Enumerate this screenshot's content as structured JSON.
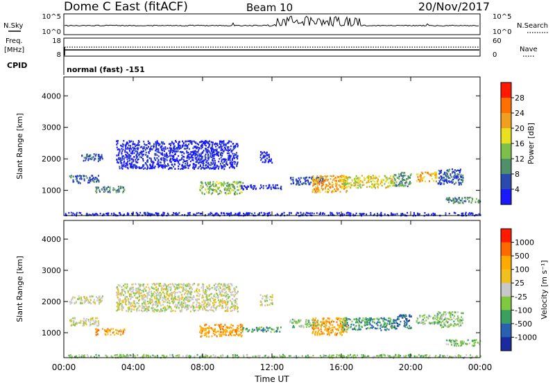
{
  "header": {
    "radar": "Dome C East (fitACF)",
    "beam": "Beam 10",
    "date": "20/Nov/2017"
  },
  "strips": {
    "nsky_label": "N.Sky",
    "nsky_ticks": [
      "10^5",
      "10^0"
    ],
    "nsearch_label": "N.Search",
    "nsearch_ticks": [
      "10^5",
      "10^0"
    ],
    "freq_label": "Freq.",
    "freq_unit": "[MHz]",
    "freq_ticks": [
      "18",
      "8"
    ],
    "nave_label": "Nave",
    "nave_ticks": [
      "60",
      "0"
    ],
    "cpid_label": "CPID",
    "cpid_value": "normal (fast) -151"
  },
  "colors": {
    "power": [
      "#1a1aff",
      "#2a4ab0",
      "#4f8f6a",
      "#7cbf4a",
      "#e8e020",
      "#f0a020",
      "#ff7000",
      "#ff1a00"
    ],
    "velocity": [
      "#ff1a00",
      "#ff6a00",
      "#ffaa00",
      "#f0c020",
      "#c8c8c8",
      "#80c840",
      "#3aa060",
      "#2a60b0",
      "#1a2aa0"
    ]
  },
  "chart_data": [
    {
      "type": "heatmap",
      "name": "power-panel",
      "xlabel": "",
      "ylabel": "Slant Range [km]",
      "x_range_hours": [
        0,
        24
      ],
      "ylim": [
        200,
        4600
      ],
      "y_ticks": [
        1000,
        2000,
        3000,
        4000
      ],
      "x_ticks": [
        0,
        4,
        8,
        12,
        16,
        20,
        24
      ],
      "colorbar": {
        "label": "Power [dB]",
        "ticks": [
          "4",
          "8",
          "12",
          "16",
          "20",
          "24",
          "28"
        ],
        "range": [
          0,
          32
        ]
      },
      "regions": [
        {
          "t": [
            1.0,
            2.2
          ],
          "r": [
            1950,
            2200
          ],
          "v": 6
        },
        {
          "t": [
            0.3,
            2.0
          ],
          "r": [
            1250,
            1500
          ],
          "v": 7
        },
        {
          "t": [
            1.8,
            3.5
          ],
          "r": [
            950,
            1150
          ],
          "v": 12
        },
        {
          "t": [
            3.0,
            10.0
          ],
          "r": [
            1700,
            2600
          ],
          "v": 4
        },
        {
          "t": [
            7.8,
            10.3
          ],
          "r": [
            900,
            1300
          ],
          "v": 15
        },
        {
          "t": [
            10.2,
            12.5
          ],
          "r": [
            1050,
            1200
          ],
          "v": 5
        },
        {
          "t": [
            11.3,
            12.0
          ],
          "r": [
            1900,
            2250
          ],
          "v": 4
        },
        {
          "t": [
            13.0,
            15.0
          ],
          "r": [
            1200,
            1450
          ],
          "v": 8
        },
        {
          "t": [
            14.3,
            16.3
          ],
          "r": [
            950,
            1500
          ],
          "v": 22
        },
        {
          "t": [
            16.0,
            19.0
          ],
          "r": [
            1100,
            1500
          ],
          "v": 18
        },
        {
          "t": [
            19.0,
            20.0
          ],
          "r": [
            1150,
            1600
          ],
          "v": 10
        },
        {
          "t": [
            20.3,
            21.5
          ],
          "r": [
            1300,
            1600
          ],
          "v": 25
        },
        {
          "t": [
            21.5,
            23.0
          ],
          "r": [
            1200,
            1700
          ],
          "v": 9
        },
        {
          "t": [
            22.0,
            24.0
          ],
          "r": [
            600,
            800
          ],
          "v": 10
        },
        {
          "t": [
            0.0,
            24.0
          ],
          "r": [
            220,
            320
          ],
          "v": 5
        }
      ]
    },
    {
      "type": "heatmap",
      "name": "velocity-panel",
      "xlabel": "Time UT",
      "ylabel": "Slant Range [km]",
      "x_range_hours": [
        0,
        24
      ],
      "ylim": [
        200,
        4600
      ],
      "y_ticks": [
        1000,
        2000,
        3000,
        4000
      ],
      "x_ticks": [
        0,
        4,
        8,
        12,
        16,
        20,
        24
      ],
      "x_tick_labels": [
        "00:00",
        "04:00",
        "08:00",
        "12:00",
        "16:00",
        "20:00",
        "00:00"
      ],
      "colorbar": {
        "label": "Velocity [m s⁻¹]",
        "ticks": [
          "1000",
          "500",
          "100",
          "25",
          "-25",
          "-100",
          "-500",
          "-1000"
        ]
      },
      "regions": [
        {
          "t": [
            0.3,
            2.2
          ],
          "r": [
            1950,
            2200
          ],
          "v": 4
        },
        {
          "t": [
            0.3,
            2.0
          ],
          "r": [
            1250,
            1500
          ],
          "v": 4
        },
        {
          "t": [
            1.8,
            3.5
          ],
          "r": [
            950,
            1150
          ],
          "v": 2
        },
        {
          "t": [
            3.0,
            10.0
          ],
          "r": [
            1700,
            2600
          ],
          "v": 4
        },
        {
          "t": [
            7.8,
            10.3
          ],
          "r": [
            900,
            1300
          ],
          "v": 2
        },
        {
          "t": [
            10.2,
            12.5
          ],
          "r": [
            1050,
            1200
          ],
          "v": 6
        },
        {
          "t": [
            11.3,
            12.0
          ],
          "r": [
            1900,
            2250
          ],
          "v": 4
        },
        {
          "t": [
            13.0,
            15.0
          ],
          "r": [
            1200,
            1450
          ],
          "v": 5
        },
        {
          "t": [
            14.3,
            16.3
          ],
          "r": [
            950,
            1500
          ],
          "v": 2
        },
        {
          "t": [
            16.0,
            19.0
          ],
          "r": [
            1100,
            1500
          ],
          "v": 6
        },
        {
          "t": [
            19.0,
            20.0
          ],
          "r": [
            1150,
            1600
          ],
          "v": 7
        },
        {
          "t": [
            20.3,
            21.5
          ],
          "r": [
            1300,
            1600
          ],
          "v": 5
        },
        {
          "t": [
            21.5,
            23.0
          ],
          "r": [
            1200,
            1700
          ],
          "v": 5
        },
        {
          "t": [
            22.0,
            24.0
          ],
          "r": [
            600,
            800
          ],
          "v": 5
        },
        {
          "t": [
            0.0,
            24.0
          ],
          "r": [
            220,
            320
          ],
          "v": 5
        }
      ]
    }
  ]
}
